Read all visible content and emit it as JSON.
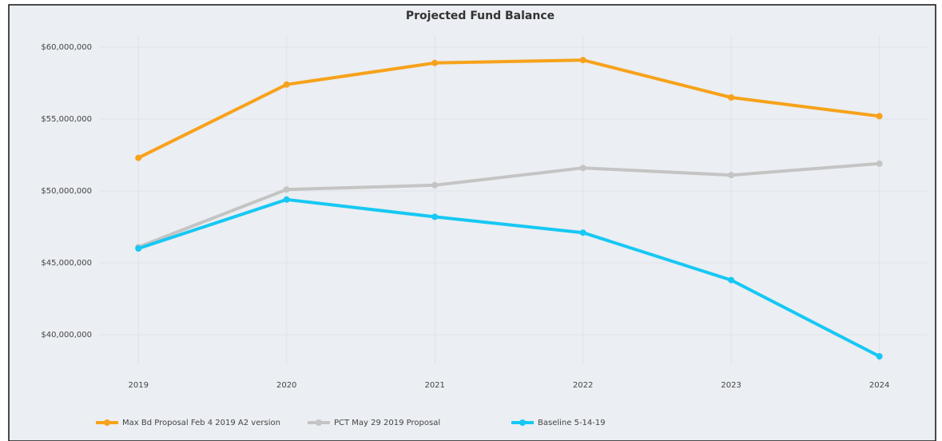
{
  "chart_data": {
    "type": "line",
    "title": "Projected Fund Balance",
    "x": [
      2019,
      2020,
      2021,
      2022,
      2023,
      2024
    ],
    "xlim": [
      2018.74,
      2024.32
    ],
    "xticks": [
      2019,
      2020,
      2021,
      2022,
      2023,
      2024
    ],
    "ylim": [
      38000000,
      60800000
    ],
    "yticks": [
      {
        "value": 40000000,
        "label": "$40,000,000"
      },
      {
        "value": 45000000,
        "label": "$45,000,000"
      },
      {
        "value": 50000000,
        "label": "$50,000,000"
      },
      {
        "value": 55000000,
        "label": "$55,000,000"
      },
      {
        "value": 60000000,
        "label": "$60,000,000"
      }
    ],
    "grid": true,
    "legend": "bottom",
    "series": [
      {
        "name": "Max Bd Proposal Feb 4 2019 A2 version",
        "color": "#f7a21b",
        "values": [
          52300000,
          57400000,
          58900000,
          59100000,
          56500000,
          55200000
        ]
      },
      {
        "name": "PCT May 29 2019 Proposal",
        "color": "#c4c4c4",
        "values": [
          46100000,
          50100000,
          50400000,
          51600000,
          51100000,
          51900000
        ]
      },
      {
        "name": "Baseline 5-14-19",
        "color": "#16c8f3",
        "values": [
          46000000,
          49400000,
          48200000,
          47100000,
          43800000,
          38500000
        ]
      }
    ]
  }
}
